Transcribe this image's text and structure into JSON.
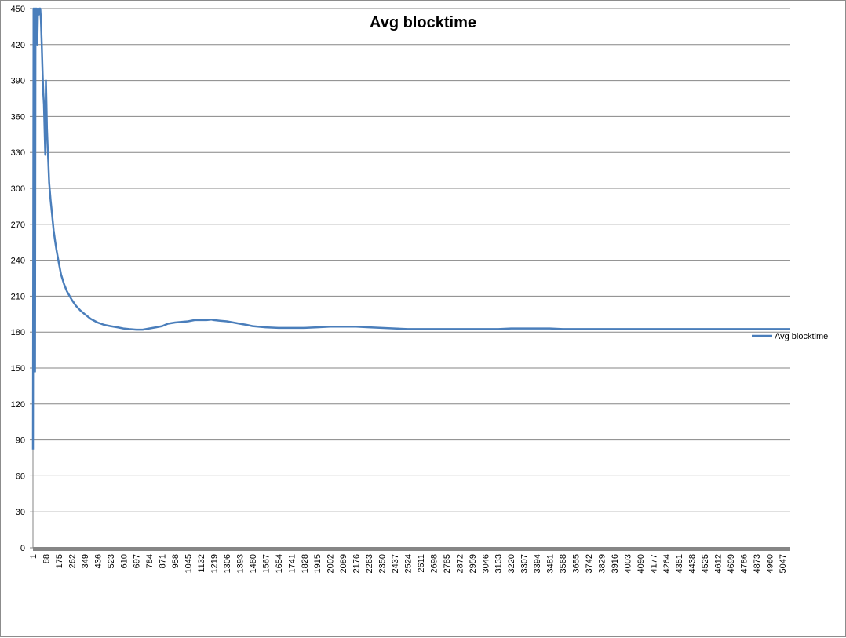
{
  "chart_data": {
    "type": "line",
    "title": "Avg blocktime",
    "xlabel": "",
    "ylabel": "",
    "ylim": [
      0,
      450
    ],
    "y_ticks": [
      0,
      30,
      60,
      90,
      120,
      150,
      180,
      210,
      240,
      270,
      300,
      330,
      360,
      390,
      420,
      450
    ],
    "x_range": [
      1,
      5100
    ],
    "x_tick_labels": [
      "1",
      "88",
      "175",
      "262",
      "349",
      "436",
      "523",
      "610",
      "697",
      "784",
      "871",
      "958",
      "1045",
      "1132",
      "1219",
      "1306",
      "1393",
      "1480",
      "1567",
      "1654",
      "1741",
      "1828",
      "1915",
      "2002",
      "2089",
      "2176",
      "2263",
      "2350",
      "2437",
      "2524",
      "2611",
      "2698",
      "2785",
      "2872",
      "2959",
      "3046",
      "3133",
      "3220",
      "3307",
      "3394",
      "3481",
      "3568",
      "3655",
      "3742",
      "3829",
      "3916",
      "4003",
      "4090",
      "4177",
      "4264",
      "4351",
      "4438",
      "4525",
      "4612",
      "4699",
      "4786",
      "4873",
      "4960",
      "5047"
    ],
    "grid": true,
    "legend_position": "right",
    "series": [
      {
        "name": "Avg blocktime",
        "color": "#4a7ebb",
        "x": [
          1,
          5,
          8,
          12,
          15,
          18,
          20,
          25,
          30,
          35,
          40,
          45,
          50,
          55,
          60,
          65,
          70,
          75,
          80,
          84,
          88,
          92,
          95,
          100,
          105,
          110,
          120,
          130,
          140,
          150,
          160,
          175,
          190,
          210,
          230,
          262,
          290,
          320,
          349,
          390,
          436,
          480,
          523,
          570,
          610,
          650,
          697,
          740,
          784,
          830,
          871,
          910,
          958,
          1000,
          1045,
          1090,
          1132,
          1170,
          1200,
          1219,
          1260,
          1306,
          1350,
          1393,
          1440,
          1480,
          1567,
          1654,
          1741,
          1828,
          1915,
          2002,
          2089,
          2176,
          2263,
          2350,
          2437,
          2524,
          2611,
          2698,
          2785,
          2872,
          2959,
          3046,
          3133,
          3220,
          3307,
          3394,
          3481,
          3568,
          3655,
          3742,
          3829,
          3916,
          4003,
          4090,
          4177,
          4264,
          4351,
          4438,
          4525,
          4612,
          4699,
          4786,
          4873,
          4960,
          5047,
          5100
        ],
        "values": [
          82,
          450,
          150,
          450,
          147,
          450,
          430,
          450,
          420,
          450,
          445,
          450,
          450,
          440,
          420,
          400,
          380,
          370,
          345,
          328,
          390,
          370,
          350,
          335,
          320,
          305,
          290,
          278,
          265,
          256,
          248,
          238,
          228,
          220,
          214,
          207,
          202,
          198,
          195,
          191,
          188,
          186,
          185,
          184,
          183,
          182.5,
          182,
          182,
          183,
          184,
          185,
          187,
          188,
          188.5,
          189,
          190,
          190,
          190,
          190.5,
          190,
          189.5,
          189,
          188,
          187,
          186,
          185,
          184,
          183.5,
          183.5,
          183.5,
          184,
          184.5,
          184.5,
          184.5,
          184,
          183.5,
          183,
          182.5,
          182.5,
          182.5,
          182.5,
          182.5,
          182.5,
          182.5,
          182.5,
          183,
          183,
          183,
          183,
          182.5,
          182.5,
          182.5,
          182.5,
          182.5,
          182.5,
          182.5,
          182.5,
          182.5,
          182.5,
          182.5,
          182.5,
          182.5,
          182.5,
          182.5,
          182.5,
          182.5,
          182.5,
          182.5
        ]
      }
    ]
  }
}
